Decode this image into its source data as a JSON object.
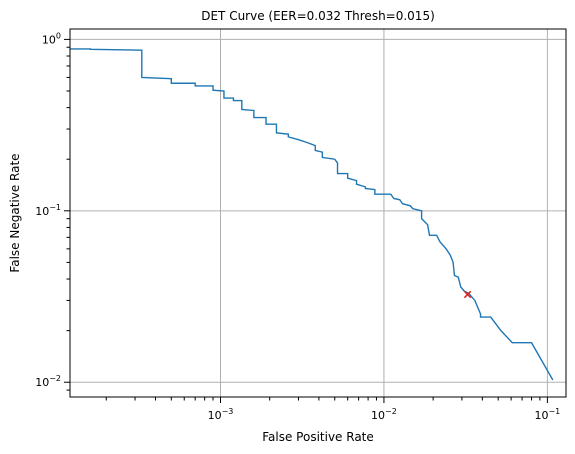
{
  "chart_data": {
    "type": "line",
    "title": "DET Curve (EER=0.032 Thresh=0.015)",
    "xlabel": "False Positive Rate",
    "ylabel": "False Negative Rate",
    "xscale": "log",
    "yscale": "log",
    "xlim": [
      0.00012,
      0.13
    ],
    "ylim": [
      0.0082,
      1.15
    ],
    "grid": true,
    "x_major_ticks": [
      {
        "value": 0.001,
        "base": "10",
        "exp": "−3"
      },
      {
        "value": 0.01,
        "base": "10",
        "exp": "−2"
      },
      {
        "value": 0.1,
        "base": "10",
        "exp": "−1"
      }
    ],
    "y_major_ticks": [
      {
        "value": 0.01,
        "base": "10",
        "exp": "−2"
      },
      {
        "value": 0.1,
        "base": "10",
        "exp": "−1"
      },
      {
        "value": 1.0,
        "base": "10",
        "exp": "0"
      }
    ],
    "series": [
      {
        "color": "#1f77b4",
        "points": [
          [
            0.00012,
            0.88
          ],
          [
            0.00016,
            0.88
          ],
          [
            0.00016,
            0.875
          ],
          [
            0.00033,
            0.865
          ],
          [
            0.00033,
            0.6
          ],
          [
            0.0005,
            0.59
          ],
          [
            0.0005,
            0.555
          ],
          [
            0.0007,
            0.555
          ],
          [
            0.0007,
            0.535
          ],
          [
            0.0009,
            0.535
          ],
          [
            0.0009,
            0.505
          ],
          [
            0.00105,
            0.5
          ],
          [
            0.00105,
            0.455
          ],
          [
            0.0012,
            0.455
          ],
          [
            0.0012,
            0.44
          ],
          [
            0.00135,
            0.44
          ],
          [
            0.00135,
            0.39
          ],
          [
            0.0016,
            0.385
          ],
          [
            0.0016,
            0.35
          ],
          [
            0.0019,
            0.35
          ],
          [
            0.0019,
            0.32
          ],
          [
            0.0022,
            0.32
          ],
          [
            0.0022,
            0.285
          ],
          [
            0.0026,
            0.28
          ],
          [
            0.0026,
            0.27
          ],
          [
            0.003,
            0.26
          ],
          [
            0.0034,
            0.25
          ],
          [
            0.0038,
            0.24
          ],
          [
            0.0038,
            0.225
          ],
          [
            0.0042,
            0.22
          ],
          [
            0.0042,
            0.205
          ],
          [
            0.005,
            0.2
          ],
          [
            0.0052,
            0.19
          ],
          [
            0.0052,
            0.165
          ],
          [
            0.006,
            0.165
          ],
          [
            0.006,
            0.155
          ],
          [
            0.0068,
            0.15
          ],
          [
            0.0068,
            0.143
          ],
          [
            0.0077,
            0.138
          ],
          [
            0.0077,
            0.135
          ],
          [
            0.0088,
            0.133
          ],
          [
            0.0088,
            0.125
          ],
          [
            0.011,
            0.125
          ],
          [
            0.0115,
            0.118
          ],
          [
            0.0125,
            0.116
          ],
          [
            0.013,
            0.11
          ],
          [
            0.0145,
            0.107
          ],
          [
            0.015,
            0.103
          ],
          [
            0.017,
            0.1
          ],
          [
            0.017,
            0.09
          ],
          [
            0.0185,
            0.083
          ],
          [
            0.019,
            0.072
          ],
          [
            0.021,
            0.072
          ],
          [
            0.022,
            0.066
          ],
          [
            0.024,
            0.06
          ],
          [
            0.0255,
            0.055
          ],
          [
            0.0265,
            0.05
          ],
          [
            0.027,
            0.042
          ],
          [
            0.0285,
            0.041
          ],
          [
            0.0295,
            0.036
          ],
          [
            0.031,
            0.034
          ],
          [
            0.033,
            0.033
          ],
          [
            0.036,
            0.03
          ],
          [
            0.039,
            0.025
          ],
          [
            0.039,
            0.024
          ],
          [
            0.045,
            0.024
          ],
          [
            0.052,
            0.02
          ],
          [
            0.061,
            0.017
          ],
          [
            0.08,
            0.017
          ],
          [
            0.108,
            0.0103
          ]
        ]
      }
    ],
    "eer_marker": {
      "x": 0.0325,
      "y": 0.0325,
      "marker": "x",
      "color": "#d62728"
    }
  }
}
